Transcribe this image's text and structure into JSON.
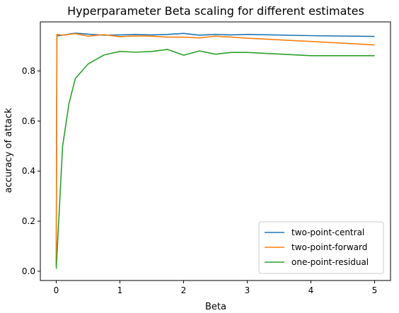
{
  "chart_data": {
    "type": "line",
    "title": "Hyperparameter Beta scaling for different estimates",
    "xlabel": "Beta",
    "ylabel": "accuracy of attack",
    "xlim": [
      -0.25,
      5.25
    ],
    "ylim": [
      -0.037,
      0.996
    ],
    "xticks": [
      0,
      1,
      2,
      3,
      4,
      5
    ],
    "yticks": [
      0.0,
      0.2,
      0.4,
      0.6,
      0.8
    ],
    "xtick_labels": [
      "0",
      "1",
      "2",
      "3",
      "4",
      "5"
    ],
    "ytick_labels": [
      "0.0",
      "0.2",
      "0.4",
      "0.6",
      "0.8"
    ],
    "grid": false,
    "legend_position": "lower-right",
    "series": [
      {
        "name": "two-point-central",
        "color": "#1f77b4",
        "x": [
          0,
          0.01,
          0.1,
          0.3,
          0.5,
          0.75,
          1.0,
          1.25,
          1.5,
          1.75,
          2.0,
          2.25,
          2.5,
          2.75,
          3.0,
          4.0,
          5.0
        ],
        "y": [
          0.02,
          0.94,
          0.943,
          0.951,
          0.947,
          0.943,
          0.944,
          0.946,
          0.944,
          0.946,
          0.95,
          0.943,
          0.946,
          0.944,
          0.946,
          0.941,
          0.938
        ]
      },
      {
        "name": "two-point-forward",
        "color": "#ff7f0e",
        "x": [
          0,
          0.01,
          0.1,
          0.3,
          0.5,
          0.75,
          1.0,
          1.25,
          1.5,
          1.75,
          2.0,
          2.25,
          2.5,
          2.75,
          3.0,
          4.0,
          5.0
        ],
        "y": [
          0.02,
          0.946,
          0.943,
          0.949,
          0.939,
          0.945,
          0.937,
          0.94,
          0.939,
          0.935,
          0.935,
          0.932,
          0.939,
          0.935,
          0.931,
          0.918,
          0.904
        ]
      },
      {
        "name": "one-point-residual",
        "color": "#2ca02c",
        "x": [
          0,
          0.1,
          0.2,
          0.3,
          0.5,
          0.75,
          1.0,
          1.25,
          1.5,
          1.75,
          2.0,
          2.25,
          2.5,
          2.75,
          3.0,
          4.0,
          5.0
        ],
        "y": [
          0.01,
          0.5,
          0.67,
          0.77,
          0.828,
          0.864,
          0.878,
          0.875,
          0.878,
          0.886,
          0.863,
          0.88,
          0.867,
          0.874,
          0.874,
          0.861,
          0.861
        ]
      }
    ]
  }
}
